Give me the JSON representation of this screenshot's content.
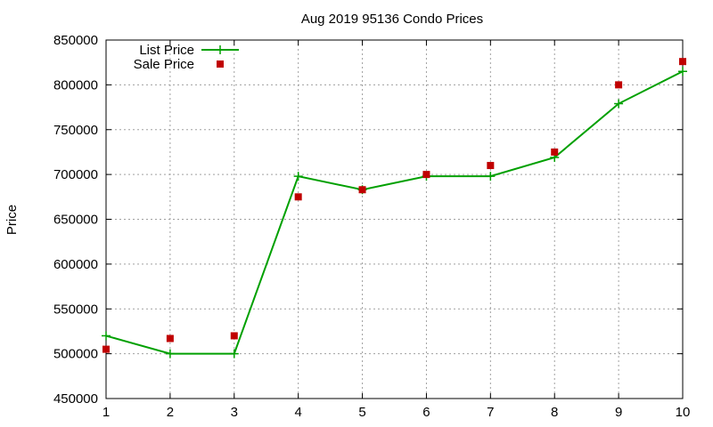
{
  "chart_data": {
    "type": "line",
    "title": "Aug 2019 95136 Condo Prices",
    "xlabel": "",
    "ylabel": "Price",
    "x": [
      1,
      2,
      3,
      4,
      5,
      6,
      7,
      8,
      9,
      10
    ],
    "xlim": [
      1,
      10
    ],
    "ylim": [
      450000,
      850000
    ],
    "xticks": [
      "1",
      "2",
      "3",
      "4",
      "5",
      "6",
      "7",
      "8",
      "9",
      "10"
    ],
    "yticks": [
      "450000",
      "500000",
      "550000",
      "600000",
      "650000",
      "700000",
      "750000",
      "800000",
      "850000"
    ],
    "grid": true,
    "legend_position": "top-left",
    "series": [
      {
        "name": "List Price",
        "style": "linespoints",
        "marker": "plus",
        "color": "#00a000",
        "values": [
          520000,
          500000,
          500000,
          698000,
          683000,
          698000,
          698000,
          719000,
          779000,
          815000
        ]
      },
      {
        "name": "Sale Price",
        "style": "points",
        "marker": "square",
        "color": "#c00000",
        "values": [
          505000,
          517000,
          520000,
          675000,
          683000,
          700000,
          710000,
          725000,
          800000,
          826000
        ]
      }
    ]
  }
}
